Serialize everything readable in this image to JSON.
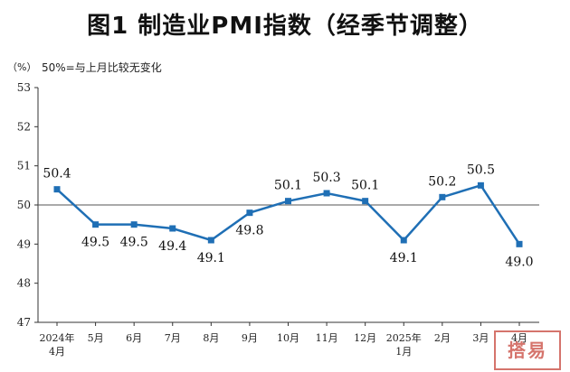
{
  "title": "图1  制造业PMI指数（经季节调整）",
  "y_unit": "（%）",
  "baseline_note": "50%=与上月比较无变化",
  "stamp_text": "搭易",
  "colors": {
    "line": "#1f6fb5",
    "marker": "#1f6fb5",
    "axis": "#333333",
    "baseline": "#555555"
  },
  "chart_data": {
    "type": "line",
    "title": "图1  制造业PMI指数（经季节调整）",
    "ylabel": "（%）",
    "xlabel": "",
    "ylim": [
      47,
      53
    ],
    "yticks": [
      "47",
      "48",
      "49",
      "50",
      "51",
      "52",
      "53"
    ],
    "baseline": 50,
    "categories": [
      [
        "2024年",
        "4月"
      ],
      [
        "5月"
      ],
      [
        "6月"
      ],
      [
        "7月"
      ],
      [
        "8月"
      ],
      [
        "9月"
      ],
      [
        "10月"
      ],
      [
        "11月"
      ],
      [
        "12月"
      ],
      [
        "2025年",
        "1月"
      ],
      [
        "2月"
      ],
      [
        "3月"
      ],
      [
        "4月"
      ]
    ],
    "series": [
      {
        "values": [
          50.4,
          49.5,
          49.5,
          49.4,
          49.1,
          49.8,
          50.1,
          50.3,
          50.1,
          49.1,
          50.2,
          50.5,
          49.0
        ],
        "labels": [
          "50.4",
          "49.5",
          "49.5",
          "49.4",
          "49.1",
          "49.8",
          "50.1",
          "50.3",
          "50.1",
          "49.1",
          "50.2",
          "50.5",
          "49.0"
        ]
      }
    ],
    "grid": false
  }
}
